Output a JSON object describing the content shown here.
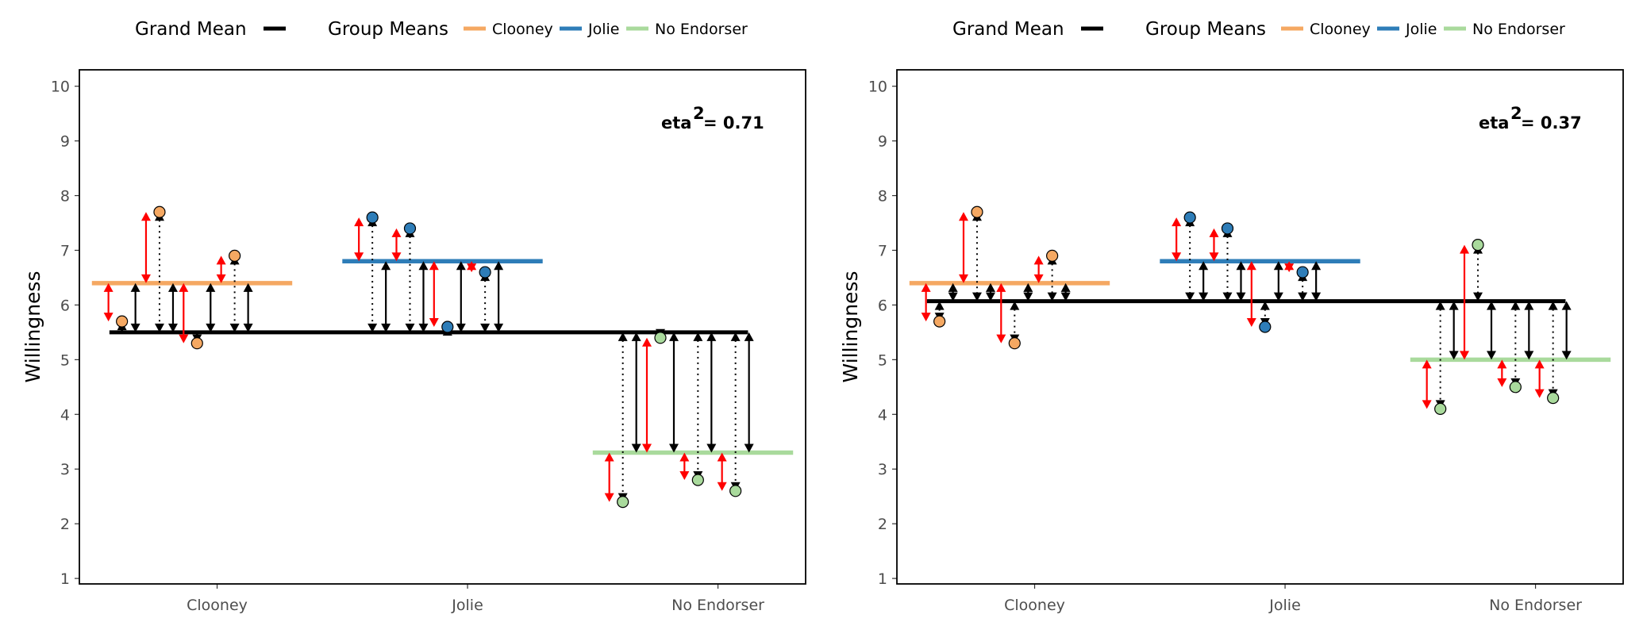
{
  "colors": {
    "Clooney": "#F5A862",
    "Jolie": "#2E7DB8",
    "No Endorser": "#A9DA9C",
    "grand_mean": "#000000",
    "residual_arrow": "#FF0000",
    "deviation_arrow": "#000000"
  },
  "legend": {
    "grand_mean_label": "Grand Mean",
    "group_means_label": "Group Means",
    "items": [
      "Clooney",
      "Jolie",
      "No Endorser"
    ]
  },
  "chart_data": [
    {
      "type": "scatter",
      "ylabel": "Willingness",
      "xlabel": "",
      "ylim": [
        0.9,
        10.3
      ],
      "yticks": [
        1,
        2,
        3,
        4,
        5,
        6,
        7,
        8,
        9,
        10
      ],
      "categories": [
        "Clooney",
        "Jolie",
        "No Endorser"
      ],
      "eta_label": "eta",
      "eta_sup": "2",
      "eta_value": "= 0.71",
      "grand_mean": 5.5,
      "group_means": {
        "Clooney": 6.4,
        "Jolie": 6.8,
        "No Endorser": 3.3
      },
      "points": [
        {
          "group": "Clooney",
          "x": 0.62,
          "y": 5.7
        },
        {
          "group": "Clooney",
          "x": 0.77,
          "y": 7.7
        },
        {
          "group": "Clooney",
          "x": 0.92,
          "y": 5.3
        },
        {
          "group": "Clooney",
          "x": 1.07,
          "y": 6.9
        },
        {
          "group": "Jolie",
          "x": 1.62,
          "y": 7.6
        },
        {
          "group": "Jolie",
          "x": 1.77,
          "y": 7.4
        },
        {
          "group": "Jolie",
          "x": 1.92,
          "y": 5.6
        },
        {
          "group": "Jolie",
          "x": 2.07,
          "y": 6.6
        },
        {
          "group": "No Endorser",
          "x": 2.62,
          "y": 2.4
        },
        {
          "group": "No Endorser",
          "x": 2.77,
          "y": 5.4
        },
        {
          "group": "No Endorser",
          "x": 2.92,
          "y": 2.8
        },
        {
          "group": "No Endorser",
          "x": 3.07,
          "y": 2.6
        }
      ]
    },
    {
      "type": "scatter",
      "ylabel": "Willingness",
      "xlabel": "",
      "ylim": [
        0.9,
        10.3
      ],
      "yticks": [
        1,
        2,
        3,
        4,
        5,
        6,
        7,
        8,
        9,
        10
      ],
      "categories": [
        "Clooney",
        "Jolie",
        "No Endorser"
      ],
      "eta_label": "eta",
      "eta_sup": "2",
      "eta_value": "= 0.37",
      "grand_mean": 6.07,
      "group_means": {
        "Clooney": 6.4,
        "Jolie": 6.8,
        "No Endorser": 5.0
      },
      "points": [
        {
          "group": "Clooney",
          "x": 0.62,
          "y": 5.7
        },
        {
          "group": "Clooney",
          "x": 0.77,
          "y": 7.7
        },
        {
          "group": "Clooney",
          "x": 0.92,
          "y": 5.3
        },
        {
          "group": "Clooney",
          "x": 1.07,
          "y": 6.9
        },
        {
          "group": "Jolie",
          "x": 1.62,
          "y": 7.6
        },
        {
          "group": "Jolie",
          "x": 1.77,
          "y": 7.4
        },
        {
          "group": "Jolie",
          "x": 1.92,
          "y": 5.6
        },
        {
          "group": "Jolie",
          "x": 2.07,
          "y": 6.6
        },
        {
          "group": "No Endorser",
          "x": 2.62,
          "y": 4.1
        },
        {
          "group": "No Endorser",
          "x": 2.77,
          "y": 7.1
        },
        {
          "group": "No Endorser",
          "x": 2.92,
          "y": 4.5
        },
        {
          "group": "No Endorser",
          "x": 3.07,
          "y": 4.3
        }
      ]
    }
  ]
}
